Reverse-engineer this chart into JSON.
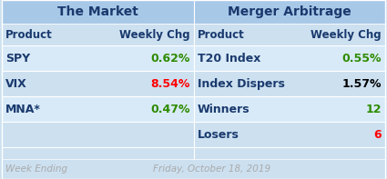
{
  "title_left": "The Market",
  "title_right": "Merger Arbitrage",
  "header_left": [
    "Product",
    "Weekly Chg"
  ],
  "header_right": [
    "Product",
    "Weekly Chg"
  ],
  "rows_left": [
    [
      "SPY",
      "0.62%"
    ],
    [
      "VIX",
      "8.54%"
    ],
    [
      "MNA*",
      "0.47%"
    ],
    [
      "",
      ""
    ]
  ],
  "rows_right": [
    [
      "T20 Index",
      "0.55%"
    ],
    [
      "Index Dispers",
      "1.57%"
    ],
    [
      "Winners",
      "12"
    ],
    [
      "Losers",
      "6"
    ]
  ],
  "left_chg_colors": [
    "#2e8b00",
    "#ff0000",
    "#2e8b00",
    "#000000"
  ],
  "right_chg_colors": [
    "#2e8b00",
    "#000000",
    "#2e8b00",
    "#ff0000"
  ],
  "bg_color": "#cce0f0",
  "title_bg": "#a8c8e8",
  "header_bg": "#b8d4ec",
  "row_bg_alt": "#d8eaf8",
  "footer_text_left": "Week Ending",
  "footer_text_right": "Friday, October 18, 2019",
  "footer_color": "#aaaaaa",
  "text_color": "#1a3a6e",
  "fig_bg": "#cce0f0"
}
